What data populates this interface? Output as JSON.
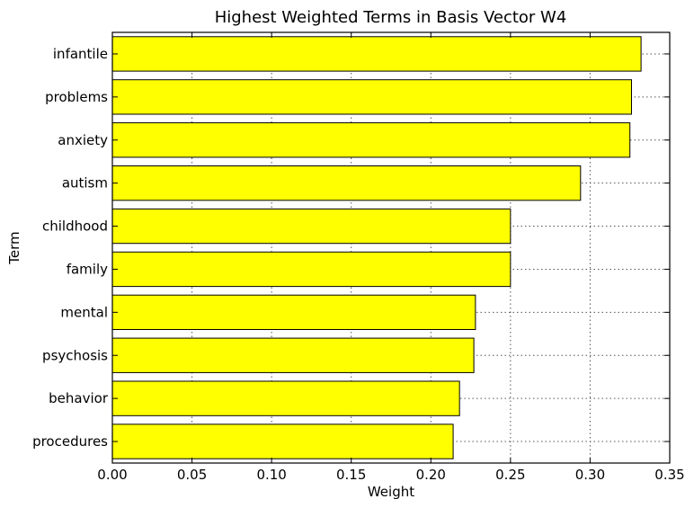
{
  "chart_data": {
    "type": "bar",
    "orientation": "horizontal",
    "title": "Highest Weighted Terms in Basis Vector W4",
    "xlabel": "Weight",
    "ylabel": "Term",
    "xlim": [
      0.0,
      0.35
    ],
    "xticks": [
      "0.00",
      "0.05",
      "0.10",
      "0.15",
      "0.20",
      "0.25",
      "0.30",
      "0.35"
    ],
    "grid": true,
    "bar_color": "#ffff00",
    "categories": [
      "infantile",
      "problems",
      "anxiety",
      "autism",
      "childhood",
      "family",
      "mental",
      "psychosis",
      "behavior",
      "procedures"
    ],
    "values": [
      0.332,
      0.326,
      0.325,
      0.294,
      0.25,
      0.25,
      0.228,
      0.227,
      0.218,
      0.214
    ]
  }
}
